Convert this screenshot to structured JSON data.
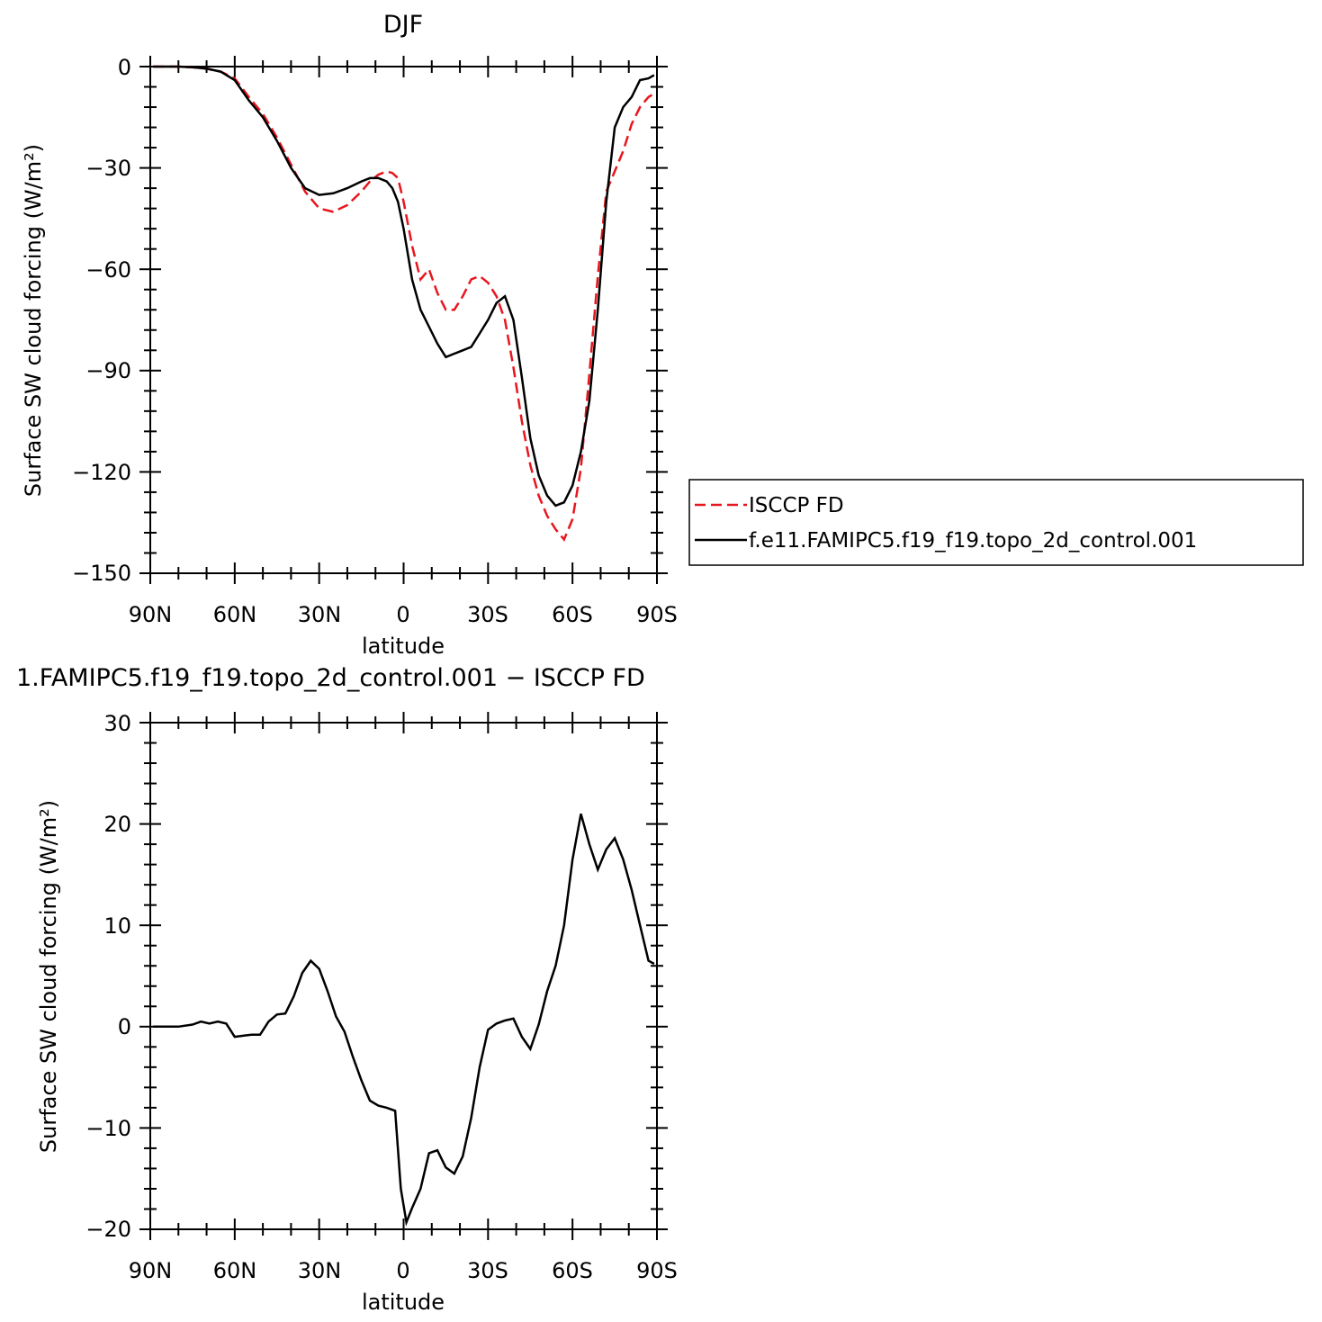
{
  "chart_data": [
    {
      "type": "line",
      "title": "DJF",
      "xlabel": "latitude",
      "ylabel": "Surface SW cloud forcing (W/m²)",
      "xlim": [
        90,
        -90
      ],
      "ylim": [
        -150,
        0
      ],
      "x_tick_values": [
        90,
        60,
        30,
        0,
        -30,
        -60,
        -90
      ],
      "x_tick_labels": [
        "90N",
        "60N",
        "30N",
        "0",
        "30S",
        "60S",
        "90S"
      ],
      "y_tick_values": [
        0,
        -30,
        -60,
        -90,
        -120,
        -150
      ],
      "y_tick_labels": [
        "0",
        "−30",
        "−60",
        "−90",
        "−120",
        "−150"
      ],
      "grid": false,
      "legend_position": "right",
      "colors": {
        "ISCCP FD": "#e8161e",
        "f.e11.FAMIPC5.f19_f19.topo_2d_control.001": "#000000"
      },
      "series": [
        {
          "name": "ISCCP FD",
          "style": "dashed",
          "color": "#e8161e",
          "x": [
            89,
            85,
            80,
            75,
            70,
            65,
            60,
            55,
            50,
            45,
            40,
            35,
            30,
            25,
            20,
            15,
            12,
            9,
            6,
            4,
            2,
            0,
            -3,
            -6,
            -9,
            -12,
            -15,
            -18,
            -21,
            -24,
            -27,
            -30,
            -33,
            -36,
            -39,
            -42,
            -45,
            -48,
            -51,
            -54,
            -57,
            -60,
            -63,
            -66,
            -69,
            -72,
            -75,
            -78,
            -81,
            -84,
            -87,
            -89
          ],
          "y": [
            0,
            0,
            0,
            -0.2,
            -0.6,
            -1.5,
            -3.5,
            -9,
            -14,
            -21,
            -29,
            -37,
            -42,
            -43,
            -41,
            -37,
            -34,
            -32,
            -31,
            -31.5,
            -33,
            -40,
            -53,
            -63,
            -60,
            -67,
            -72,
            -72,
            -68,
            -63,
            -62,
            -64,
            -68,
            -75,
            -89,
            -105,
            -118,
            -127,
            -133,
            -137,
            -140,
            -134,
            -119,
            -91,
            -62,
            -37,
            -31,
            -25,
            -17,
            -12,
            -9,
            -8
          ]
        },
        {
          "name": "f.e11.FAMIPC5.f19_f19.topo_2d_control.001",
          "style": "solid",
          "color": "#000000",
          "x": [
            89,
            85,
            80,
            75,
            70,
            65,
            60,
            55,
            50,
            45,
            40,
            35,
            30,
            25,
            20,
            15,
            12,
            9,
            6,
            4,
            2,
            0,
            -3,
            -6,
            -9,
            -12,
            -15,
            -18,
            -21,
            -24,
            -27,
            -30,
            -33,
            -36,
            -39,
            -42,
            -45,
            -48,
            -51,
            -54,
            -57,
            -60,
            -63,
            -66,
            -69,
            -72,
            -75,
            -78,
            -81,
            -84,
            -87,
            -89
          ],
          "y": [
            0,
            0,
            0,
            -0.2,
            -0.6,
            -1.5,
            -4,
            -10,
            -15,
            -22,
            -30,
            -36,
            -38,
            -37.5,
            -36,
            -34,
            -33,
            -33,
            -34,
            -36,
            -40,
            -48,
            -63,
            -72,
            -77,
            -82,
            -86,
            -85,
            -84,
            -83,
            -79,
            -75,
            -70,
            -68,
            -75,
            -92,
            -110,
            -121,
            -127,
            -130,
            -129,
            -124,
            -114,
            -99,
            -72,
            -40,
            -18,
            -12,
            -9,
            -4,
            -3.5,
            -2.5
          ]
        }
      ]
    },
    {
      "type": "line",
      "title": "1.FAMIPC5.f19_f19.topo_2d_control.001 − ISCCP FD",
      "xlabel": "latitude",
      "ylabel": "Surface SW cloud forcing (W/m²)",
      "xlim": [
        90,
        -90
      ],
      "ylim": [
        -20,
        30
      ],
      "x_tick_values": [
        90,
        60,
        30,
        0,
        -30,
        -60,
        -90
      ],
      "x_tick_labels": [
        "90N",
        "60N",
        "30N",
        "0",
        "30S",
        "60S",
        "90S"
      ],
      "y_tick_values": [
        30,
        20,
        10,
        0,
        -10,
        -20
      ],
      "y_tick_labels": [
        "30",
        "20",
        "10",
        "0",
        "−10",
        "−20"
      ],
      "grid": false,
      "colors": {
        "difference": "#000000"
      },
      "series": [
        {
          "style": "solid",
          "color": "#000000",
          "x": [
            89,
            85,
            80,
            75,
            72,
            69,
            66,
            63,
            60,
            57,
            54,
            51,
            48,
            45,
            42,
            39,
            36,
            33,
            30,
            27,
            24,
            21,
            18,
            15,
            12,
            9,
            6,
            3,
            1,
            -1,
            -3,
            -6,
            -9,
            -12,
            -15,
            -18,
            -21,
            -24,
            -27,
            -30,
            -33,
            -36,
            -39,
            -42,
            -45,
            -48,
            -51,
            -54,
            -57,
            -60,
            -63,
            -66,
            -69,
            -72,
            -75,
            -78,
            -81,
            -84,
            -87,
            -89
          ],
          "y": [
            0,
            0,
            0,
            0.2,
            0.5,
            0.3,
            0.5,
            0.3,
            -1.0,
            -0.9,
            -0.8,
            -0.8,
            0.5,
            1.2,
            1.3,
            3.0,
            5.3,
            6.5,
            5.7,
            3.5,
            1.0,
            -0.5,
            -3.0,
            -5.3,
            -7.3,
            -7.8,
            -8.0,
            -8.3,
            -16.0,
            -19.3,
            -17.9,
            -16.0,
            -12.5,
            -12.2,
            -13.9,
            -14.5,
            -12.8,
            -9.0,
            -4.0,
            -0.3,
            0.3,
            0.6,
            0.8,
            -1.0,
            -2.2,
            0.2,
            3.5,
            6.0,
            10.0,
            16.5,
            21.0,
            18.0,
            15.5,
            17.5,
            18.6,
            16.5,
            13.5,
            10.0,
            6.5,
            6.2
          ]
        }
      ]
    }
  ],
  "legend": {
    "entries": [
      {
        "label": "ISCCP FD",
        "style": "dashed",
        "color": "#e8161e"
      },
      {
        "label": "f.e11.FAMIPC5.f19_f19.topo_2d_control.001",
        "style": "solid",
        "color": "#000000"
      }
    ]
  }
}
